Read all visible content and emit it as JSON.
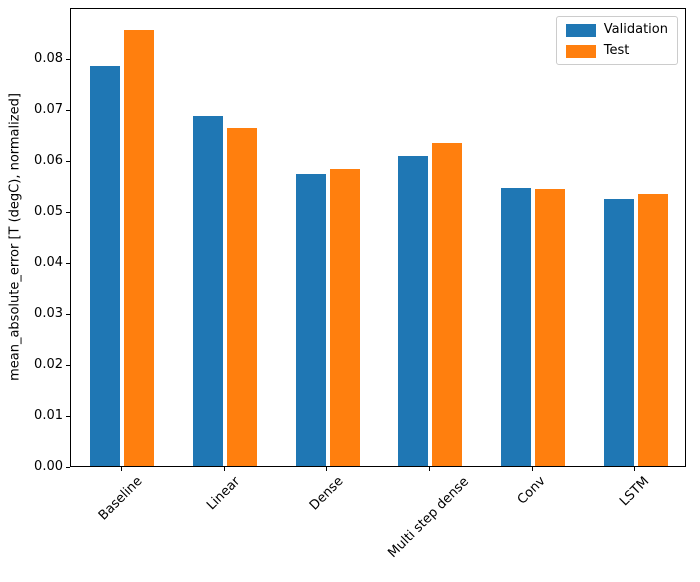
{
  "chart_data": {
    "type": "bar",
    "title": "",
    "xlabel": "",
    "ylabel": "mean_absolute_error [T (degC), normalized]",
    "categories": [
      "Baseline",
      "Linear",
      "Dense",
      "Multi step dense",
      "Conv",
      "LSTM"
    ],
    "series": [
      {
        "name": "Validation",
        "color": "#1f77b4",
        "values": [
          0.0785,
          0.0687,
          0.0572,
          0.0607,
          0.0545,
          0.0524
        ]
      },
      {
        "name": "Test",
        "color": "#ff7f0e",
        "values": [
          0.0855,
          0.0663,
          0.0583,
          0.0634,
          0.0543,
          0.0534
        ]
      }
    ],
    "ylim": [
      0,
      0.09
    ],
    "yticks": [
      0.0,
      0.01,
      0.02,
      0.03,
      0.04,
      0.05,
      0.06,
      0.07,
      0.08
    ],
    "grid": false,
    "legend": {
      "position": "upper right",
      "entries": [
        "Validation",
        "Test"
      ]
    },
    "xtick_rotation": 45
  }
}
